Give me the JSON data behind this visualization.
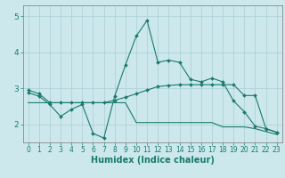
{
  "xlabel": "Humidex (Indice chaleur)",
  "background_color": "#cce8ec",
  "grid_color": "#aacdd4",
  "line_color": "#1a7a6e",
  "spine_color": "#888888",
  "xlim": [
    -0.5,
    23.5
  ],
  "ylim": [
    1.5,
    5.3
  ],
  "yticks": [
    2,
    3,
    4,
    5
  ],
  "xticks": [
    0,
    1,
    2,
    3,
    4,
    5,
    6,
    7,
    8,
    9,
    10,
    11,
    12,
    13,
    14,
    15,
    16,
    17,
    18,
    19,
    20,
    21,
    22,
    23
  ],
  "series1_x": [
    0,
    1,
    2,
    3,
    4,
    5,
    6,
    7,
    8,
    9,
    10,
    11,
    12,
    13,
    14,
    15,
    16,
    17,
    18,
    19,
    20,
    21,
    22,
    23
  ],
  "series1_y": [
    2.88,
    2.78,
    2.55,
    2.22,
    2.42,
    2.55,
    1.75,
    1.62,
    2.78,
    3.65,
    4.45,
    4.88,
    3.72,
    3.78,
    3.72,
    3.25,
    3.18,
    3.28,
    3.18,
    2.65,
    2.35,
    1.95,
    1.88,
    1.78
  ],
  "series2_x": [
    0,
    1,
    2,
    3,
    4,
    5,
    6,
    7,
    8,
    9,
    10,
    11,
    12,
    13,
    14,
    15,
    16,
    17,
    18,
    19,
    20,
    21,
    22,
    23
  ],
  "series2_y": [
    2.95,
    2.85,
    2.6,
    2.6,
    2.6,
    2.6,
    2.6,
    2.6,
    2.67,
    2.75,
    2.85,
    2.95,
    3.05,
    3.08,
    3.1,
    3.1,
    3.1,
    3.1,
    3.1,
    3.1,
    2.8,
    2.8,
    1.88,
    1.78
  ],
  "series3_x": [
    0,
    1,
    2,
    3,
    4,
    5,
    6,
    7,
    8,
    9,
    10,
    11,
    12,
    13,
    14,
    15,
    16,
    17,
    18,
    19,
    20,
    21,
    22,
    23
  ],
  "series3_y": [
    2.6,
    2.6,
    2.6,
    2.6,
    2.6,
    2.6,
    2.6,
    2.6,
    2.6,
    2.6,
    2.05,
    2.05,
    2.05,
    2.05,
    2.05,
    2.05,
    2.05,
    2.05,
    1.93,
    1.93,
    1.93,
    1.88,
    1.8,
    1.72
  ],
  "xlabel_fontsize": 7,
  "tick_fontsize": 5.5,
  "ytick_fontsize": 6.5
}
